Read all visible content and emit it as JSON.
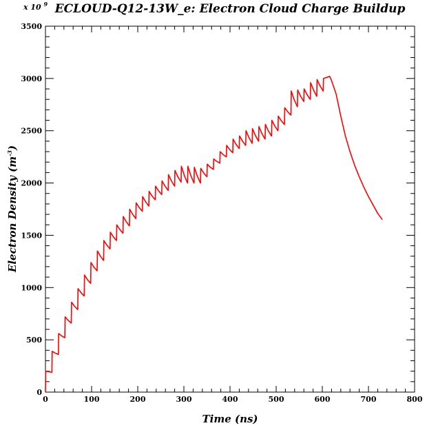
{
  "chart_data": {
    "type": "line",
    "title": "ECLOUD-Q12-13W_e: Electron Cloud Charge Buildup",
    "xlabel": "Time (ns)",
    "ylabel": "Electron Density (m",
    "ylabel_exponent": "-3",
    "ylabel_close": ")",
    "y_multiplier": "x 10",
    "y_multiplier_exponent": "9",
    "xlim": [
      0,
      800
    ],
    "ylim": [
      0,
      3500
    ],
    "x_ticks": [
      0,
      100,
      200,
      300,
      400,
      500,
      600,
      700,
      800
    ],
    "y_ticks": [
      0,
      500,
      1000,
      1500,
      2000,
      2500,
      3000,
      3500
    ],
    "x_tick_labels": [
      "0",
      "100",
      "200",
      "300",
      "400",
      "500",
      "600",
      "700",
      "800"
    ],
    "y_tick_labels": [
      "0",
      "500",
      "1000",
      "1500",
      "2000",
      "2500",
      "3000",
      "3500"
    ],
    "grid": false,
    "series_color": "#ff0000",
    "series": [
      {
        "buildup": {
          "start_time": 0,
          "bunch_spacing": 14,
          "bunch_count": 44,
          "last_bunch_time": 616,
          "peaks": [
            200,
            390,
            560,
            720,
            860,
            990,
            1120,
            1240,
            1350,
            1450,
            1530,
            1600,
            1680,
            1750,
            1810,
            1870,
            1920,
            1970,
            2020,
            2080,
            2120,
            2160,
            2160,
            2150,
            2140,
            2180,
            2230,
            2300,
            2360,
            2420,
            2450,
            2500,
            2520,
            2540,
            2560,
            2600,
            2640,
            2720,
            2880,
            2890,
            2900,
            2960,
            2990,
            3000
          ],
          "troughs": [
            190,
            360,
            520,
            660,
            790,
            920,
            1040,
            1160,
            1260,
            1370,
            1450,
            1520,
            1590,
            1660,
            1730,
            1780,
            1840,
            1890,
            1930,
            1970,
            2010,
            2000,
            2000,
            2000,
            2060,
            2130,
            2190,
            2250,
            2290,
            2330,
            2360,
            2380,
            2400,
            2420,
            2450,
            2500,
            2560,
            2650,
            2730,
            2780,
            2800,
            2830,
            2880
          ]
        },
        "decay_x": [
          616,
          620,
          630,
          640,
          650,
          660,
          670,
          680,
          690,
          700,
          710,
          720,
          730
        ],
        "decay_y": [
          3020,
          2980,
          2850,
          2640,
          2450,
          2300,
          2170,
          2060,
          1960,
          1870,
          1790,
          1710,
          1650
        ]
      }
    ]
  }
}
